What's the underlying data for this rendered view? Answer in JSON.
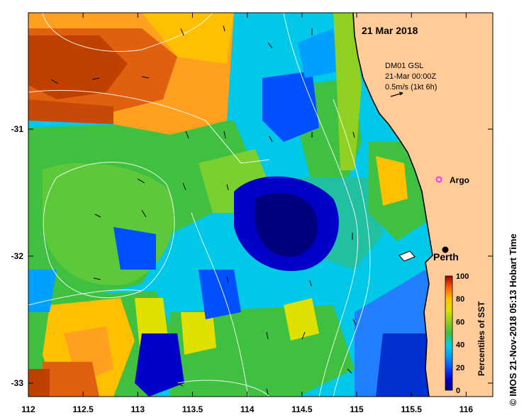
{
  "map": {
    "date_title": "21 Mar 2018",
    "current_label": {
      "line1": "DM01 GSL",
      "line2": "21-Mar 00:00Z",
      "line3": "0.5m/s (1kt 6h)"
    },
    "argo_label": "Argo",
    "city_label": "Perth",
    "credit": "© IMOS 21-Nov-2018 05:13 Hobart Time",
    "x_ticks": [
      "112",
      "112.5",
      "113",
      "113.5",
      "114",
      "114.5",
      "115",
      "115.5",
      "116"
    ],
    "y_ticks": [
      "-31",
      "-32",
      "-33"
    ],
    "colorbar": {
      "title": "Percentiles of SST",
      "ticks": [
        "100",
        "80",
        "60",
        "40",
        "20",
        "0"
      ],
      "colors": [
        "#00007f",
        "#0000c8",
        "#0050ff",
        "#00a0ff",
        "#00d0e0",
        "#20c0a0",
        "#40c040",
        "#90d020",
        "#e0e000",
        "#ffc000",
        "#ff8000",
        "#e04000",
        "#b01000",
        "#800000"
      ]
    },
    "colors": {
      "land": "#ffcc99",
      "argo_marker": "#ff33ff",
      "contour": "#ffffff"
    }
  }
}
